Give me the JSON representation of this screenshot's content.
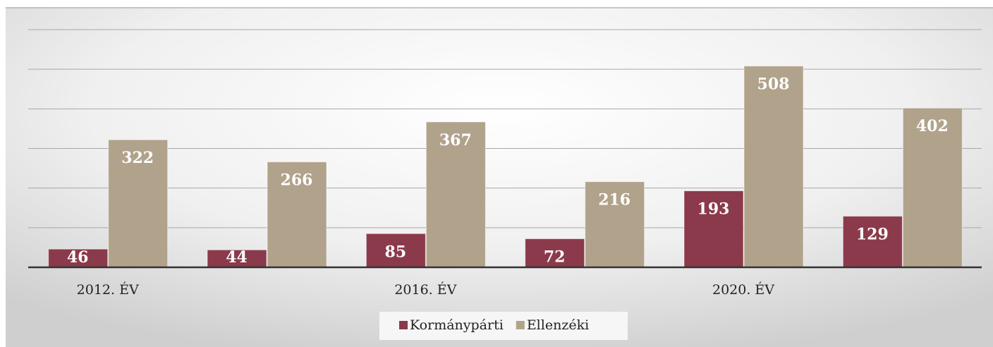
{
  "chart_data": {
    "type": "bar",
    "categories": [
      "2012. ÉV",
      null,
      "2016. ÉV",
      null,
      "2020. ÉV",
      null
    ],
    "series": [
      {
        "name": "Kormánypárti",
        "color": "#8b3a4b",
        "values": [
          46,
          44,
          85,
          72,
          193,
          129
        ]
      },
      {
        "name": "Ellenzéki",
        "color": "#b1a28b",
        "values": [
          322,
          266,
          367,
          216,
          508,
          402
        ]
      }
    ],
    "ylim": [
      0,
      600
    ],
    "yticks": [
      0,
      100,
      200,
      300,
      400,
      500,
      600
    ],
    "grid": true,
    "legend": "bottom"
  }
}
